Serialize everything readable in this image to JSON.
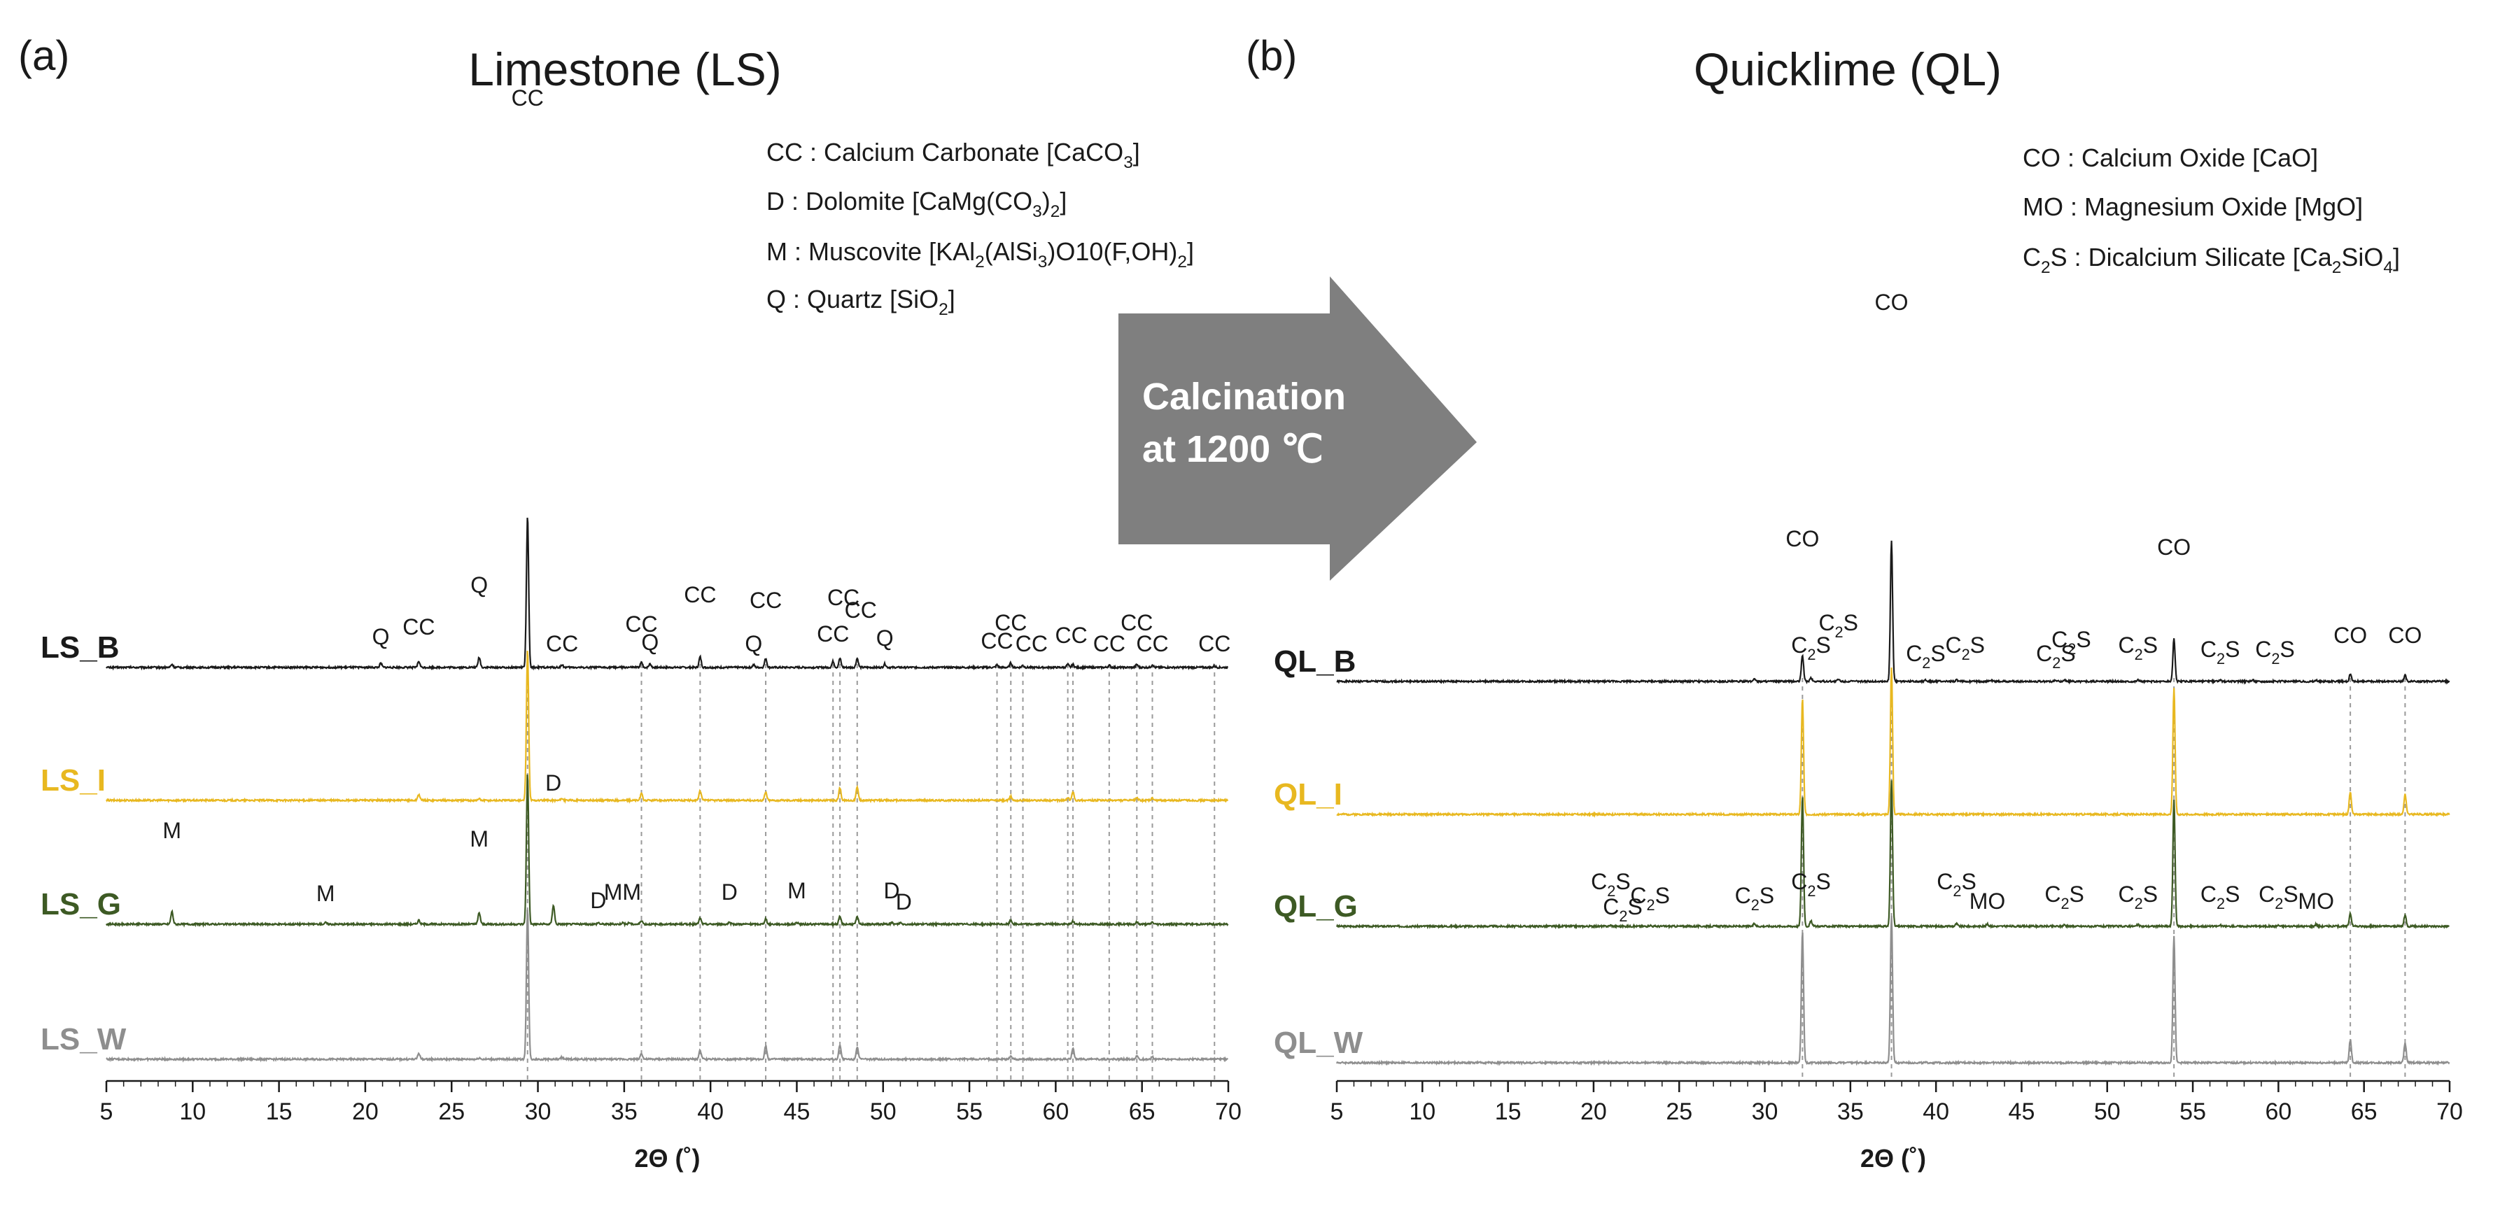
{
  "figure": {
    "arrow_text": [
      "Calcination",
      "at 1200 ℃"
    ],
    "colors": {
      "B": "#1a1a1a",
      "I": "#e8b820",
      "G": "#3d5a24",
      "W": "#8e8e8e",
      "arrow": "#7f7f7f",
      "guide": "#9a9a9a"
    }
  },
  "chart_data": [
    {
      "panel": "(a)",
      "type": "line",
      "title": "Limestone (LS)",
      "xlabel": "2Θ (˚)",
      "ylabel": "",
      "xlim": [
        5,
        70
      ],
      "xticks": [
        5,
        10,
        15,
        20,
        25,
        30,
        35,
        40,
        45,
        50,
        55,
        60,
        65,
        70
      ],
      "legend": [
        {
          "sym": "CC",
          "sep": " : ",
          "text": "Calcium Carbonate [CaCO",
          "sub": "3",
          "end": "]"
        },
        {
          "sym": "D",
          "sep": " : ",
          "text": "Dolomite [CaMg(CO",
          "sub": "3",
          "mid": ")",
          "sub2": "2",
          "end": "]"
        },
        {
          "sym": "M",
          "sep": " : ",
          "text": "Muscovite [KAl",
          "sub": "2",
          "mid": "(AlSi",
          "sub2": "3",
          "end": ")O10(F,OH)",
          "sub3": "2",
          "end2": "]"
        },
        {
          "sym": "Q",
          "sep": " : ",
          "text": "Quartz [SiO",
          "sub": "2",
          "end": "]"
        }
      ],
      "guides": [
        29.4,
        36.0,
        39.4,
        43.2,
        47.1,
        47.5,
        48.5,
        56.6,
        57.4,
        58.1,
        60.7,
        61.0,
        63.1,
        64.7,
        65.6,
        69.2
      ],
      "series": [
        {
          "name": "LS_B",
          "color": "#1a1a1a",
          "peaks": [
            [
              8.8,
              0.6
            ],
            [
              20.9,
              0.8
            ],
            [
              23.1,
              1.2
            ],
            [
              26.6,
              2.0
            ],
            [
              29.4,
              30.0
            ],
            [
              31.4,
              0.5
            ],
            [
              36.0,
              1.0
            ],
            [
              36.5,
              0.7
            ],
            [
              39.4,
              2.1
            ],
            [
              42.5,
              0.5
            ],
            [
              43.2,
              1.8
            ],
            [
              47.1,
              1.2
            ],
            [
              47.5,
              1.8
            ],
            [
              48.5,
              1.8
            ],
            [
              50.1,
              0.7
            ],
            [
              56.6,
              0.5
            ],
            [
              57.4,
              0.9
            ],
            [
              58.1,
              0.4
            ],
            [
              60.7,
              0.6
            ],
            [
              61.0,
              0.6
            ],
            [
              63.1,
              0.4
            ],
            [
              64.7,
              0.6
            ],
            [
              65.6,
              0.5
            ],
            [
              69.2,
              0.3
            ]
          ]
        },
        {
          "name": "LS_I",
          "color": "#e8b820",
          "peaks": [
            [
              23.1,
              1.2
            ],
            [
              26.6,
              0.3
            ],
            [
              29.4,
              30.0
            ],
            [
              31.4,
              0.4
            ],
            [
              36.0,
              1.3
            ],
            [
              39.4,
              1.9
            ],
            [
              43.2,
              1.6
            ],
            [
              47.5,
              2.5
            ],
            [
              48.5,
              2.6
            ],
            [
              57.4,
              0.8
            ],
            [
              60.7,
              0.5
            ],
            [
              61.0,
              1.6
            ],
            [
              64.7,
              0.6
            ],
            [
              65.6,
              0.4
            ]
          ]
        },
        {
          "name": "LS_G",
          "color": "#3d5a24",
          "peaks": [
            [
              8.8,
              2.5
            ],
            [
              17.7,
              0.3
            ],
            [
              23.1,
              0.8
            ],
            [
              26.6,
              2.3
            ],
            [
              29.4,
              30.0
            ],
            [
              30.9,
              3.8
            ],
            [
              33.5,
              0.3
            ],
            [
              34.9,
              0.3
            ],
            [
              35.3,
              0.3
            ],
            [
              36.0,
              0.8
            ],
            [
              39.4,
              1.2
            ],
            [
              41.1,
              0.3
            ],
            [
              43.2,
              1.1
            ],
            [
              45.0,
              0.3
            ],
            [
              47.5,
              1.5
            ],
            [
              48.5,
              1.4
            ],
            [
              50.5,
              0.3
            ],
            [
              51.0,
              0.3
            ],
            [
              57.4,
              0.8
            ],
            [
              61.0,
              0.6
            ],
            [
              64.7,
              0.4
            ],
            [
              65.6,
              0.4
            ]
          ]
        },
        {
          "name": "LS_W",
          "color": "#8e8e8e",
          "peaks": [
            [
              23.1,
              1.2
            ],
            [
              26.6,
              0.3
            ],
            [
              29.4,
              30.0
            ],
            [
              31.4,
              0.4
            ],
            [
              36.0,
              1.2
            ],
            [
              39.4,
              1.8
            ],
            [
              43.2,
              2.7
            ],
            [
              47.5,
              2.9
            ],
            [
              48.5,
              2.5
            ],
            [
              57.4,
              0.7
            ],
            [
              61.0,
              2.3
            ],
            [
              64.7,
              0.7
            ],
            [
              65.6,
              0.5
            ]
          ]
        }
      ],
      "annotations": [
        {
          "t": "CC",
          "x": 29.4,
          "row": 0,
          "dy": 790
        },
        {
          "t": "Q",
          "x": 26.6,
          "row": 0,
          "dy": 94
        },
        {
          "t": "Q",
          "x": 20.9,
          "row": 0,
          "dy": 20
        },
        {
          "t": "CC",
          "x": 23.1,
          "row": 0,
          "dy": 34
        },
        {
          "t": "CC",
          "x": 31.4,
          "row": 0,
          "dy": 10
        },
        {
          "t": "CC",
          "x": 36.0,
          "row": 0,
          "dy": 38
        },
        {
          "t": "Q",
          "x": 36.5,
          "row": 0,
          "dy": 12
        },
        {
          "t": "CC",
          "x": 39.4,
          "row": 0,
          "dy": 80
        },
        {
          "t": "Q",
          "x": 42.5,
          "row": 0,
          "dy": 10
        },
        {
          "t": "CC",
          "x": 43.2,
          "row": 0,
          "dy": 72
        },
        {
          "t": "CC",
          "x": 47.1,
          "row": 0,
          "dy": 24
        },
        {
          "t": "CC",
          "x": 47.7,
          "row": 0,
          "dy": 76
        },
        {
          "t": "CC",
          "x": 48.7,
          "row": 0,
          "dy": 58
        },
        {
          "t": "Q",
          "x": 50.1,
          "row": 0,
          "dy": 18
        },
        {
          "t": "CC",
          "x": 56.6,
          "row": 0,
          "dy": 14
        },
        {
          "t": "CC",
          "x": 57.4,
          "row": 0,
          "dy": 40
        },
        {
          "t": "CC",
          "x": 58.6,
          "row": 0,
          "dy": 10
        },
        {
          "t": "CC",
          "x": 60.9,
          "row": 0,
          "dy": 22
        },
        {
          "t": "CC",
          "x": 63.1,
          "row": 0,
          "dy": 10
        },
        {
          "t": "CC",
          "x": 64.7,
          "row": 0,
          "dy": 40
        },
        {
          "t": "CC",
          "x": 65.6,
          "row": 0,
          "dy": 10
        },
        {
          "t": "CC",
          "x": 69.2,
          "row": 0,
          "dy": 10
        },
        {
          "t": "M",
          "x": 8.8,
          "row": 2,
          "dy": 110
        },
        {
          "t": "M",
          "x": 17.7,
          "row": 2,
          "dy": 20
        },
        {
          "t": "M",
          "x": 26.6,
          "row": 2,
          "dy": 98
        },
        {
          "t": "D",
          "x": 30.9,
          "row": 2,
          "dy": 178
        },
        {
          "t": "D",
          "x": 33.5,
          "row": 2,
          "dy": 10
        },
        {
          "t": "MM",
          "x": 34.9,
          "row": 2,
          "dy": 22
        },
        {
          "t": "D",
          "x": 41.1,
          "row": 2,
          "dy": 22
        },
        {
          "t": "M",
          "x": 45.0,
          "row": 2,
          "dy": 24
        },
        {
          "t": "D",
          "x": 50.5,
          "row": 2,
          "dy": 24
        },
        {
          "t": "D",
          "x": 51.2,
          "row": 2,
          "dy": 8
        }
      ]
    },
    {
      "panel": "(b)",
      "type": "line",
      "title": "Quicklime (QL)",
      "xlabel": "2Θ (˚)",
      "ylabel": "",
      "xlim": [
        5,
        70
      ],
      "xticks": [
        5,
        10,
        15,
        20,
        25,
        30,
        35,
        40,
        45,
        50,
        55,
        60,
        65,
        70
      ],
      "legend": [
        {
          "sym": "CO",
          "sep": " : ",
          "text": "Calcium Oxide [CaO]"
        },
        {
          "sym": "MO",
          "sep": " : ",
          "text": "Magnesium Oxide [MgO]"
        },
        {
          "sym": "C",
          "symsub": "2",
          "symend": "S",
          "sep": " : ",
          "text": "Dicalcium Silicate [Ca",
          "sub": "2",
          "end": "SiO",
          "sub2": "4",
          "end2": "]"
        }
      ],
      "guides": [
        32.2,
        37.4,
        53.9,
        64.2,
        67.4
      ],
      "series": [
        {
          "name": "QL_B",
          "color": "#1a1a1a",
          "peaks": [
            [
              29.4,
              0.6
            ],
            [
              32.2,
              5.3
            ],
            [
              32.7,
              0.7
            ],
            [
              34.3,
              0.4
            ],
            [
              37.4,
              28.0
            ],
            [
              39.4,
              0.3
            ],
            [
              41.2,
              0.3
            ],
            [
              43.2,
              0.2
            ],
            [
              47.0,
              0.2
            ],
            [
              47.5,
              0.3
            ],
            [
              51.8,
              0.3
            ],
            [
              53.9,
              8.5
            ],
            [
              56.6,
              0.2
            ],
            [
              58.5,
              0.3
            ],
            [
              62.2,
              0.2
            ],
            [
              64.2,
              1.4
            ],
            [
              67.4,
              1.2
            ]
          ]
        },
        {
          "name": "QL_I",
          "color": "#e8b820",
          "peaks": [
            [
              32.2,
              23.0
            ],
            [
              37.4,
              29.0
            ],
            [
              53.9,
              25.0
            ],
            [
              64.2,
              4.5
            ],
            [
              67.4,
              4.0
            ]
          ]
        },
        {
          "name": "QL_G",
          "color": "#3d5a24",
          "peaks": [
            [
              21.0,
              0.2
            ],
            [
              23.3,
              0.2
            ],
            [
              29.4,
              0.5
            ],
            [
              32.2,
              26.0
            ],
            [
              32.7,
              1.0
            ],
            [
              37.4,
              29.0
            ],
            [
              41.2,
              0.5
            ],
            [
              43.0,
              0.4
            ],
            [
              47.5,
              0.3
            ],
            [
              51.8,
              0.3
            ],
            [
              53.9,
              25.0
            ],
            [
              56.6,
              0.2
            ],
            [
              60.0,
              0.2
            ],
            [
              62.2,
              0.4
            ],
            [
              64.2,
              2.6
            ],
            [
              67.4,
              2.2
            ]
          ]
        },
        {
          "name": "QL_W",
          "color": "#8e8e8e",
          "peaks": [
            [
              32.2,
              26.0
            ],
            [
              37.4,
              29.0
            ],
            [
              53.9,
              25.0
            ],
            [
              64.2,
              4.5
            ],
            [
              67.4,
              4.0
            ]
          ]
        }
      ],
      "annotations": [
        {
          "t": "CO",
          "x": 37.4,
          "row": 0,
          "dy": 518
        },
        {
          "t": "CO",
          "x": 32.2,
          "row": 0,
          "dy": 180
        },
        {
          "t": "CO",
          "x": 53.9,
          "row": 0,
          "dy": 168
        },
        {
          "t": "CO",
          "x": 64.2,
          "row": 0,
          "dy": 42
        },
        {
          "t": "CO",
          "x": 67.4,
          "row": 0,
          "dy": 42
        },
        {
          "t": "C2S",
          "x": 32.7,
          "row": 0,
          "dy": 28
        },
        {
          "t": "C2S",
          "x": 34.3,
          "row": 0,
          "dy": 60
        },
        {
          "t": "C2S",
          "x": 39.4,
          "row": 0,
          "dy": 16
        },
        {
          "t": "C2S",
          "x": 41.7,
          "row": 0,
          "dy": 28
        },
        {
          "t": "C2S",
          "x": 47.0,
          "row": 0,
          "dy": 16
        },
        {
          "t": "C2S",
          "x": 47.9,
          "row": 0,
          "dy": 36
        },
        {
          "t": "C2S",
          "x": 51.8,
          "row": 0,
          "dy": 28
        },
        {
          "t": "C2S",
          "x": 56.6,
          "row": 0,
          "dy": 22
        },
        {
          "t": "C2S",
          "x": 59.8,
          "row": 0,
          "dy": 22
        },
        {
          "t": "C2S",
          "x": 21.0,
          "row": 2,
          "dy": 40
        },
        {
          "t": "C2S",
          "x": 23.3,
          "row": 2,
          "dy": 20
        },
        {
          "t": "C2S",
          "x": 21.7,
          "row": 2,
          "dy": 4
        },
        {
          "t": "C2S",
          "x": 29.4,
          "row": 2,
          "dy": 20
        },
        {
          "t": "C2S",
          "x": 32.7,
          "row": 2,
          "dy": 40
        },
        {
          "t": "C2S",
          "x": 41.2,
          "row": 2,
          "dy": 40
        },
        {
          "t": "MO",
          "x": 43.0,
          "row": 2,
          "dy": 12
        },
        {
          "t": "C2S",
          "x": 47.5,
          "row": 2,
          "dy": 22
        },
        {
          "t": "C2S",
          "x": 51.8,
          "row": 2,
          "dy": 22
        },
        {
          "t": "C2S",
          "x": 56.6,
          "row": 2,
          "dy": 22
        },
        {
          "t": "C2S",
          "x": 60.0,
          "row": 2,
          "dy": 22
        },
        {
          "t": "MO",
          "x": 62.2,
          "row": 2,
          "dy": 12
        }
      ]
    }
  ]
}
